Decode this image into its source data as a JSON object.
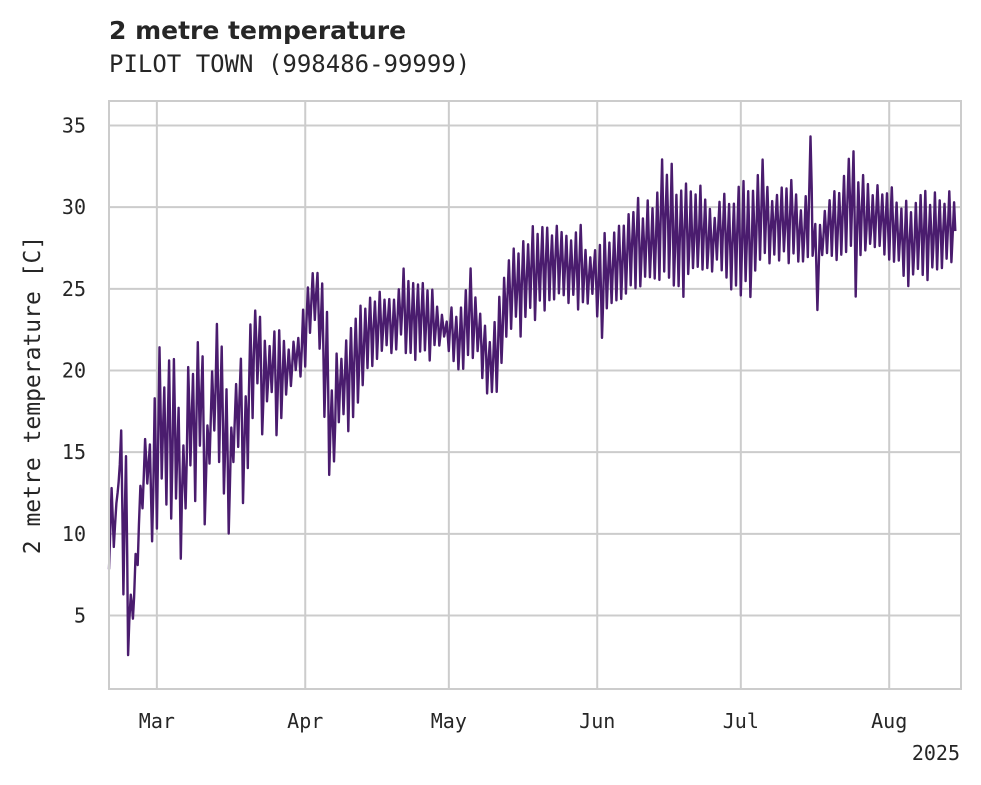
{
  "header": {
    "title": "2 metre temperature",
    "subtitle": "PILOT TOWN (998486-99999)"
  },
  "colors": {
    "line": "#4a1c6e",
    "grid": "#cccccc",
    "frame": "#cccccc",
    "text": "#262626",
    "background": "#ffffff"
  },
  "chart_data": {
    "type": "line",
    "ylabel": "2 metre temperature [C]",
    "xlabel": "",
    "ylim": [
      0.5,
      36.5
    ],
    "yticks": [
      5,
      10,
      15,
      20,
      25,
      30,
      35
    ],
    "xlim": [
      "2025-02-19",
      "2025-08-16"
    ],
    "xticks": [
      {
        "date": "2025-03-01",
        "label": "Mar"
      },
      {
        "date": "2025-04-01",
        "label": "Apr"
      },
      {
        "date": "2025-05-01",
        "label": "May"
      },
      {
        "date": "2025-06-01",
        "label": "Jun"
      },
      {
        "date": "2025-07-01",
        "label": "Jul"
      },
      {
        "date": "2025-08-01",
        "label": "Aug"
      }
    ],
    "year_label": "2025",
    "grid": true,
    "series": [
      {
        "x": [
          "2025-02-19",
          "2025-02-20",
          "2025-02-21",
          "2025-02-22",
          "2025-02-23",
          "2025-02-24",
          "2025-02-25",
          "2025-02-26",
          "2025-02-27",
          "2025-02-28",
          "2025-03-01",
          "2025-03-02",
          "2025-03-03",
          "2025-03-04",
          "2025-03-05",
          "2025-03-06",
          "2025-03-07",
          "2025-03-08",
          "2025-03-09",
          "2025-03-10",
          "2025-03-11",
          "2025-03-12",
          "2025-03-13",
          "2025-03-14",
          "2025-03-15",
          "2025-03-16",
          "2025-03-17",
          "2025-03-18",
          "2025-03-19",
          "2025-03-20",
          "2025-03-21",
          "2025-03-22",
          "2025-03-23",
          "2025-03-24",
          "2025-03-25",
          "2025-03-26",
          "2025-03-27",
          "2025-03-28",
          "2025-03-29",
          "2025-03-30",
          "2025-03-31",
          "2025-04-01",
          "2025-04-02",
          "2025-04-03",
          "2025-04-04",
          "2025-04-05",
          "2025-04-06",
          "2025-04-07",
          "2025-04-08",
          "2025-04-09",
          "2025-04-10",
          "2025-04-11",
          "2025-04-12",
          "2025-04-13",
          "2025-04-14",
          "2025-04-15",
          "2025-04-16",
          "2025-04-17",
          "2025-04-18",
          "2025-04-19",
          "2025-04-20",
          "2025-04-21",
          "2025-04-22",
          "2025-04-23",
          "2025-04-24",
          "2025-04-25",
          "2025-04-26",
          "2025-04-27",
          "2025-04-28",
          "2025-04-29",
          "2025-04-30",
          "2025-05-01",
          "2025-05-02",
          "2025-05-03",
          "2025-05-04",
          "2025-05-05",
          "2025-05-06",
          "2025-05-07",
          "2025-05-08",
          "2025-05-09",
          "2025-05-10",
          "2025-05-11",
          "2025-05-12",
          "2025-05-13",
          "2025-05-14",
          "2025-05-15",
          "2025-05-16",
          "2025-05-17",
          "2025-05-18",
          "2025-05-19",
          "2025-05-20",
          "2025-05-21",
          "2025-05-22",
          "2025-05-23",
          "2025-05-24",
          "2025-05-25",
          "2025-05-26",
          "2025-05-27",
          "2025-05-28",
          "2025-05-29",
          "2025-05-30",
          "2025-05-31",
          "2025-06-01",
          "2025-06-02",
          "2025-06-03",
          "2025-06-04",
          "2025-06-05",
          "2025-06-06",
          "2025-06-07",
          "2025-06-08",
          "2025-06-09",
          "2025-06-10",
          "2025-06-11",
          "2025-06-12",
          "2025-06-13",
          "2025-06-14",
          "2025-06-15",
          "2025-06-16",
          "2025-06-17",
          "2025-06-18",
          "2025-06-19",
          "2025-06-20",
          "2025-06-21",
          "2025-06-22",
          "2025-06-23",
          "2025-06-24",
          "2025-06-25",
          "2025-06-26",
          "2025-06-27",
          "2025-06-28",
          "2025-06-29",
          "2025-06-30",
          "2025-07-01",
          "2025-07-02",
          "2025-07-03",
          "2025-07-04",
          "2025-07-05",
          "2025-07-06",
          "2025-07-07",
          "2025-07-08",
          "2025-07-09",
          "2025-07-10",
          "2025-07-11",
          "2025-07-12",
          "2025-07-13",
          "2025-07-14",
          "2025-07-15",
          "2025-07-16",
          "2025-07-17",
          "2025-07-18",
          "2025-07-19",
          "2025-07-20",
          "2025-07-21",
          "2025-07-22",
          "2025-07-23",
          "2025-07-24",
          "2025-07-25",
          "2025-07-26",
          "2025-07-27",
          "2025-07-28",
          "2025-07-29",
          "2025-07-30",
          "2025-07-31",
          "2025-08-01",
          "2025-08-02",
          "2025-08-03",
          "2025-08-04",
          "2025-08-05",
          "2025-08-06",
          "2025-08-07",
          "2025-08-08",
          "2025-08-09",
          "2025-08-10",
          "2025-08-11",
          "2025-08-12",
          "2025-08-13",
          "2025-08-14",
          "2025-08-15"
        ],
        "min": [
          7.5,
          9,
          13,
          6,
          2.5,
          4.5,
          8,
          11.5,
          13,
          8.8,
          9.5,
          13,
          11,
          10.5,
          12,
          8.3,
          11,
          14,
          12,
          15,
          10.3,
          14,
          16,
          14,
          12,
          10,
          14,
          15,
          11.5,
          14,
          17,
          19,
          16,
          18,
          18.5,
          16,
          17,
          18.5,
          19,
          20,
          19.5,
          20,
          22,
          23,
          21,
          17,
          13.5,
          14,
          16.5,
          17,
          16,
          17,
          18,
          19,
          20,
          20,
          20.5,
          21,
          21.5,
          21,
          21,
          22,
          21,
          21,
          20.5,
          21,
          21,
          20.5,
          21.5,
          21.5,
          22,
          21,
          20.5,
          20,
          20,
          20.5,
          20.5,
          21,
          19.5,
          18.5,
          18.5,
          18.5,
          20,
          22,
          22.5,
          23,
          22,
          23,
          23.5,
          23,
          24,
          23.5,
          24,
          24,
          24.5,
          24.5,
          24,
          24.5,
          23.5,
          24,
          24,
          24.5,
          23,
          21.5,
          23.5,
          24,
          24,
          24,
          24.5,
          25,
          25,
          25,
          25.5,
          25.5,
          25.5,
          25.5,
          26,
          25.5,
          25,
          25,
          24.5,
          25.5,
          26,
          26,
          26,
          26,
          26,
          26.5,
          26,
          25.5,
          24.5,
          25,
          24.5,
          25,
          24.5,
          26,
          26.5,
          27,
          26.5,
          27,
          26.5,
          27,
          26.5,
          27,
          26.5,
          26.5,
          26.5,
          27,
          23.5,
          27,
          27,
          27,
          26.5,
          27,
          27,
          27.5,
          24.5,
          27,
          27,
          27.5,
          27.5,
          27.5,
          27,
          26.5,
          26.5,
          26.5,
          25.5,
          25,
          25.5,
          26,
          25.5,
          25.5,
          26,
          26,
          26,
          26.5,
          26.5
        ],
        "max": [
          13,
          12,
          16.5,
          15,
          6.5,
          9,
          13,
          16,
          15.5,
          18.5,
          21.5,
          19,
          21,
          21.5,
          18,
          16,
          21,
          20,
          22,
          21,
          17,
          20,
          23,
          22,
          19,
          17,
          19.5,
          21,
          19,
          23.5,
          24,
          23.5,
          22,
          21.5,
          22.5,
          23,
          22,
          21.5,
          22,
          22,
          24,
          25.5,
          26,
          26,
          25.5,
          24,
          19,
          21.5,
          21,
          22,
          23,
          23.5,
          24,
          24,
          24.5,
          24.5,
          25,
          24.5,
          24.5,
          24.5,
          25,
          26.5,
          25.5,
          25.5,
          25.5,
          25.5,
          25,
          25,
          24,
          23.5,
          23,
          24,
          23.5,
          24,
          25,
          26.5,
          24.5,
          23.5,
          23,
          22,
          23,
          25,
          26,
          27,
          27.5,
          27.5,
          28,
          28,
          29,
          28.5,
          29,
          29,
          28.5,
          29,
          28.5,
          28.5,
          28,
          28.5,
          29,
          27.5,
          27,
          27.5,
          28,
          28.5,
          28,
          28.5,
          29,
          29,
          30,
          30,
          31,
          29.5,
          30.5,
          30,
          31,
          33,
          32.5,
          33,
          31,
          31.5,
          32,
          31,
          31,
          31.5,
          30.5,
          30,
          29.5,
          30.5,
          31,
          30.5,
          30.5,
          31.5,
          32,
          31.5,
          31.5,
          32,
          33,
          31.5,
          30.5,
          31,
          31.5,
          31.5,
          32,
          31,
          30,
          31,
          35,
          29,
          29,
          30,
          30.5,
          31,
          31,
          32,
          33,
          33.5,
          32,
          32,
          31.5,
          31,
          31.5,
          31,
          31,
          31.5,
          30.5,
          30,
          30.5,
          30,
          30.5,
          31,
          31,
          30.5,
          31,
          30.5,
          30.5,
          31,
          30.5
        ]
      }
    ]
  }
}
